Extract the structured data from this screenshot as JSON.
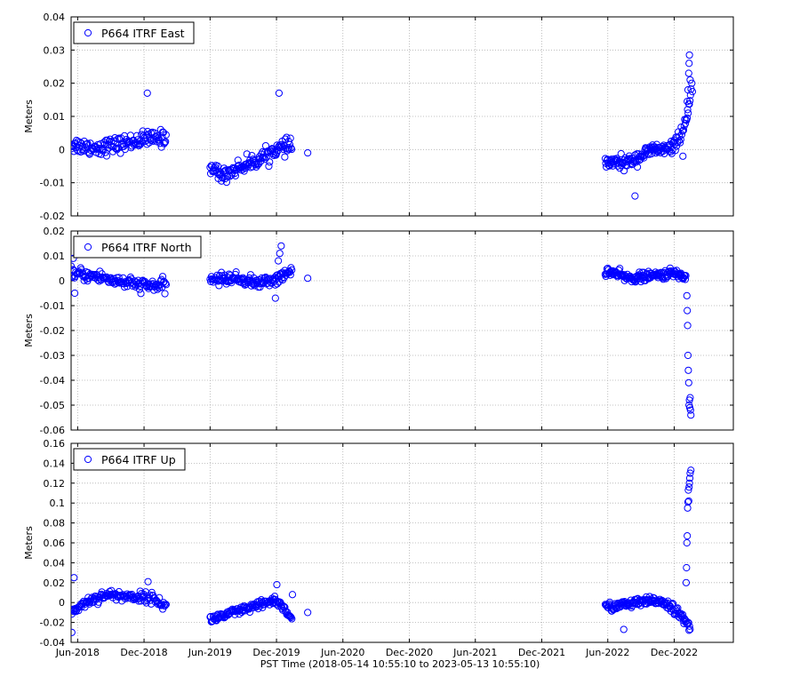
{
  "figure": {
    "xlabel": "PST Time (2018-05-14 10:55:10 to 2023-05-13 10:55:10)",
    "x_tick_labels": [
      "Jun-2018",
      "Dec-2018",
      "Jun-2019",
      "Dec-2019",
      "Jun-2020",
      "Dec-2020",
      "Jun-2021",
      "Dec-2021",
      "Jun-2022",
      "Dec-2022"
    ],
    "marker_color": "#0000ff",
    "grid": true
  },
  "chart_data": [
    {
      "type": "scatter",
      "series": [
        {
          "name": "P664 ITRF East",
          "segments": [
            {
              "x_start": "2018-05-14",
              "x_end": "2019-01-31",
              "trend": [
                [
                  0,
                  0.0015
                ],
                [
                  0.25,
                  0.0005
                ],
                [
                  0.5,
                  0.0015
                ],
                [
                  0.75,
                  0.003
                ],
                [
                  1,
                  0.0035
                ]
              ],
              "noise": 0.0022,
              "count": 140
            },
            {
              "x_start": "2019-06-01",
              "x_end": "2020-01-12",
              "trend": [
                [
                  0,
                  -0.005
                ],
                [
                  0.15,
                  -0.008
                ],
                [
                  0.3,
                  -0.006
                ],
                [
                  0.6,
                  -0.003
                ],
                [
                  0.8,
                  0.0
                ],
                [
                  1,
                  0.001
                ]
              ],
              "noise": 0.002,
              "count": 130
            },
            {
              "x_start": "2022-05-25",
              "x_end": "2023-01-20",
              "trend": [
                [
                  0,
                  -0.004
                ],
                [
                  0.25,
                  -0.004
                ],
                [
                  0.4,
                  -0.002
                ],
                [
                  0.55,
                  0.0
                ],
                [
                  0.75,
                  0.0
                ],
                [
                  0.88,
                  0.005
                ],
                [
                  0.95,
                  0.01
                ],
                [
                  1,
                  0.02
                ]
              ],
              "noise": 0.0018,
              "count": 150
            }
          ],
          "points": [
            {
              "x": "2018-12-10",
              "y": 0.017
            },
            {
              "x": "2019-12-08",
              "y": 0.017
            },
            {
              "x": "2020-02-25",
              "y": -0.001
            },
            {
              "x": "2022-08-15",
              "y": -0.014
            },
            {
              "x": "2023-01-12",
              "y": 0.0285
            },
            {
              "x": "2023-01-11",
              "y": 0.026
            },
            {
              "x": "2023-01-10",
              "y": 0.023
            },
            {
              "x": "2023-01-14",
              "y": 0.021
            },
            {
              "x": "2023-01-08",
              "y": 0.018
            },
            {
              "x": "2023-01-06",
              "y": 0.0145
            },
            {
              "x": "2022-12-25",
              "y": -0.002
            }
          ]
        }
      ],
      "ylabel": "Meters",
      "ylim": [
        -0.02,
        0.04
      ],
      "y_ticks": [
        -0.02,
        -0.01,
        0,
        0.01,
        0.02,
        0.03,
        0.04
      ],
      "y_tick_labels": [
        "-0.02",
        "-0.01",
        "0",
        "0.01",
        "0.02",
        "0.03",
        "0.04"
      ],
      "xlim": [
        "2018-05-14",
        "2023-05-13"
      ],
      "legend_placement": "top-left"
    },
    {
      "type": "scatter",
      "series": [
        {
          "name": "P664 ITRF North",
          "segments": [
            {
              "x_start": "2018-05-14",
              "x_end": "2019-01-31",
              "trend": [
                [
                  0,
                  0.003
                ],
                [
                  0.3,
                  0.0015
                ],
                [
                  0.6,
                  -0.001
                ],
                [
                  0.8,
                  -0.002
                ],
                [
                  1,
                  -0.002
                ]
              ],
              "noise": 0.0022,
              "count": 140
            },
            {
              "x_start": "2019-06-01",
              "x_end": "2020-01-12",
              "trend": [
                [
                  0,
                  0.0005
                ],
                [
                  0.3,
                  0.001
                ],
                [
                  0.6,
                  -0.001
                ],
                [
                  0.85,
                  0.001
                ],
                [
                  1,
                  0.004
                ]
              ],
              "noise": 0.002,
              "count": 130
            },
            {
              "x_start": "2022-05-25",
              "x_end": "2023-01-02",
              "trend": [
                [
                  0,
                  0.004
                ],
                [
                  0.3,
                  0.001
                ],
                [
                  0.6,
                  0.002
                ],
                [
                  0.85,
                  0.003
                ],
                [
                  1,
                  0.0015
                ]
              ],
              "noise": 0.0016,
              "count": 150
            }
          ],
          "points": [
            {
              "x": "2018-05-20",
              "y": 0.009
            },
            {
              "x": "2018-05-24",
              "y": -0.005
            },
            {
              "x": "2019-12-14",
              "y": 0.014
            },
            {
              "x": "2019-12-10",
              "y": 0.011
            },
            {
              "x": "2019-12-06",
              "y": 0.008
            },
            {
              "x": "2019-11-28",
              "y": -0.007
            },
            {
              "x": "2020-02-25",
              "y": 0.001
            },
            {
              "x": "2023-01-05",
              "y": -0.006
            },
            {
              "x": "2023-01-06",
              "y": -0.012
            },
            {
              "x": "2023-01-07",
              "y": -0.018
            },
            {
              "x": "2023-01-08",
              "y": -0.03
            },
            {
              "x": "2023-01-09",
              "y": -0.036
            },
            {
              "x": "2023-01-10",
              "y": -0.041
            },
            {
              "x": "2023-01-12",
              "y": -0.048
            },
            {
              "x": "2023-01-14",
              "y": -0.047
            },
            {
              "x": "2023-01-11",
              "y": -0.05
            },
            {
              "x": "2023-01-13",
              "y": -0.051
            },
            {
              "x": "2023-01-15",
              "y": -0.052
            },
            {
              "x": "2023-01-16",
              "y": -0.054
            }
          ]
        }
      ],
      "ylabel": "Meters",
      "ylim": [
        -0.06,
        0.02
      ],
      "y_ticks": [
        -0.06,
        -0.05,
        -0.04,
        -0.03,
        -0.02,
        -0.01,
        0,
        0.01,
        0.02
      ],
      "y_tick_labels": [
        "-0.06",
        "-0.05",
        "-0.04",
        "-0.03",
        "-0.02",
        "-0.01",
        "0",
        "0.01",
        "0.02"
      ],
      "xlim": [
        "2018-05-14",
        "2023-05-13"
      ],
      "legend_placement": "top-left"
    },
    {
      "type": "scatter",
      "series": [
        {
          "name": "P664 ITRF Up",
          "segments": [
            {
              "x_start": "2018-05-14",
              "x_end": "2019-01-31",
              "trend": [
                [
                  0,
                  -0.01
                ],
                [
                  0.15,
                  0.0
                ],
                [
                  0.35,
                  0.008
                ],
                [
                  0.6,
                  0.006
                ],
                [
                  0.85,
                  0.005
                ],
                [
                  1,
                  -0.004
                ]
              ],
              "noise": 0.0045,
              "count": 140
            },
            {
              "x_start": "2019-06-01",
              "x_end": "2020-01-12",
              "trend": [
                [
                  0,
                  -0.017
                ],
                [
                  0.3,
                  -0.01
                ],
                [
                  0.6,
                  -0.003
                ],
                [
                  0.8,
                  0.003
                ],
                [
                  0.9,
                  -0.006
                ],
                [
                  1,
                  -0.015
                ]
              ],
              "noise": 0.004,
              "count": 130
            },
            {
              "x_start": "2022-05-25",
              "x_end": "2023-01-14",
              "trend": [
                [
                  0,
                  -0.005
                ],
                [
                  0.4,
                  0.0
                ],
                [
                  0.65,
                  0.002
                ],
                [
                  0.8,
                  -0.005
                ],
                [
                  0.9,
                  -0.015
                ],
                [
                  1,
                  -0.025
                ]
              ],
              "noise": 0.004,
              "count": 150
            }
          ],
          "points": [
            {
              "x": "2018-05-22",
              "y": 0.025
            },
            {
              "x": "2018-05-16",
              "y": -0.03
            },
            {
              "x": "2018-12-12",
              "y": 0.021
            },
            {
              "x": "2019-12-02",
              "y": 0.018
            },
            {
              "x": "2020-01-14",
              "y": 0.008
            },
            {
              "x": "2020-02-25",
              "y": -0.01
            },
            {
              "x": "2022-07-15",
              "y": -0.027
            },
            {
              "x": "2023-01-03",
              "y": 0.02
            },
            {
              "x": "2023-01-04",
              "y": 0.035
            },
            {
              "x": "2023-01-05",
              "y": 0.06
            },
            {
              "x": "2023-01-06",
              "y": 0.067
            },
            {
              "x": "2023-01-07",
              "y": 0.095
            },
            {
              "x": "2023-01-08",
              "y": 0.101
            },
            {
              "x": "2023-01-10",
              "y": 0.102
            },
            {
              "x": "2023-01-09",
              "y": 0.113
            },
            {
              "x": "2023-01-11",
              "y": 0.116
            },
            {
              "x": "2023-01-12",
              "y": 0.12
            },
            {
              "x": "2023-01-13",
              "y": 0.125
            },
            {
              "x": "2023-01-14",
              "y": 0.13
            },
            {
              "x": "2023-01-16",
              "y": 0.133
            }
          ]
        }
      ],
      "ylabel": "Meters",
      "ylim": [
        -0.04,
        0.16
      ],
      "y_ticks": [
        -0.04,
        -0.02,
        0,
        0.02,
        0.04,
        0.06,
        0.08,
        0.1,
        0.12,
        0.14,
        0.16
      ],
      "y_tick_labels": [
        "-0.04",
        "-0.02",
        "0",
        "0.02",
        "0.04",
        "0.06",
        "0.08",
        "0.1",
        "0.12",
        "0.14",
        "0.16"
      ],
      "xlim": [
        "2018-05-14",
        "2023-05-13"
      ],
      "legend_placement": "top-left"
    }
  ]
}
